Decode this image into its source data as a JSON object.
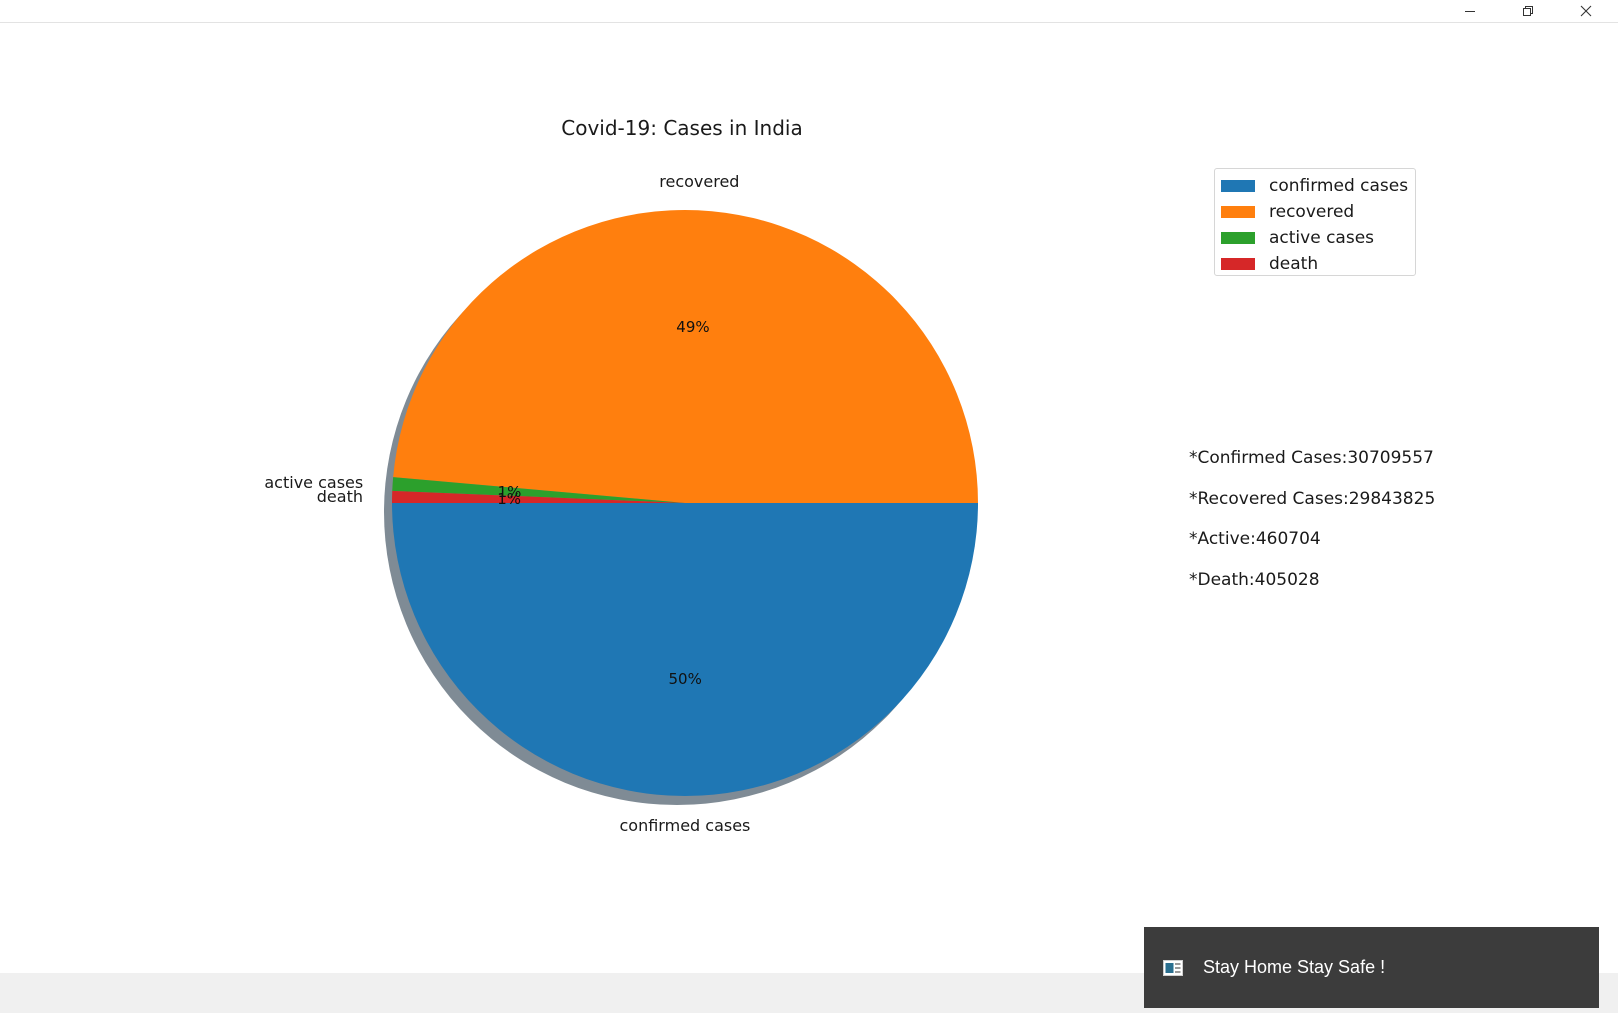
{
  "window": {
    "controls": [
      "minimize",
      "restore",
      "close"
    ]
  },
  "chart_data": {
    "type": "pie",
    "title": "Covid-19: Cases in India",
    "categories": [
      "confirmed cases",
      "recovered",
      "active cases",
      "death"
    ],
    "values": [
      30709557,
      29843825,
      460704,
      405028
    ],
    "percent_labels": [
      "50%",
      "49%",
      "1%",
      "1%"
    ],
    "colors": [
      "#1f77b4",
      "#ff7f0e",
      "#2ca02c",
      "#d62728"
    ],
    "shadow": true,
    "start_angle_deg": 180,
    "legend": {
      "placement": "upper-right",
      "entries": [
        "confirmed cases",
        "recovered",
        "active cases",
        "death"
      ]
    }
  },
  "stats": {
    "confirmed": "*Confirmed Cases:30709557",
    "recovered": "*Recovered Cases:29843825",
    "active": "*Active:460704",
    "death": "*Death:405028"
  },
  "toast": {
    "message": "Stay Home Stay Safe !",
    "icon": "app-icon"
  }
}
